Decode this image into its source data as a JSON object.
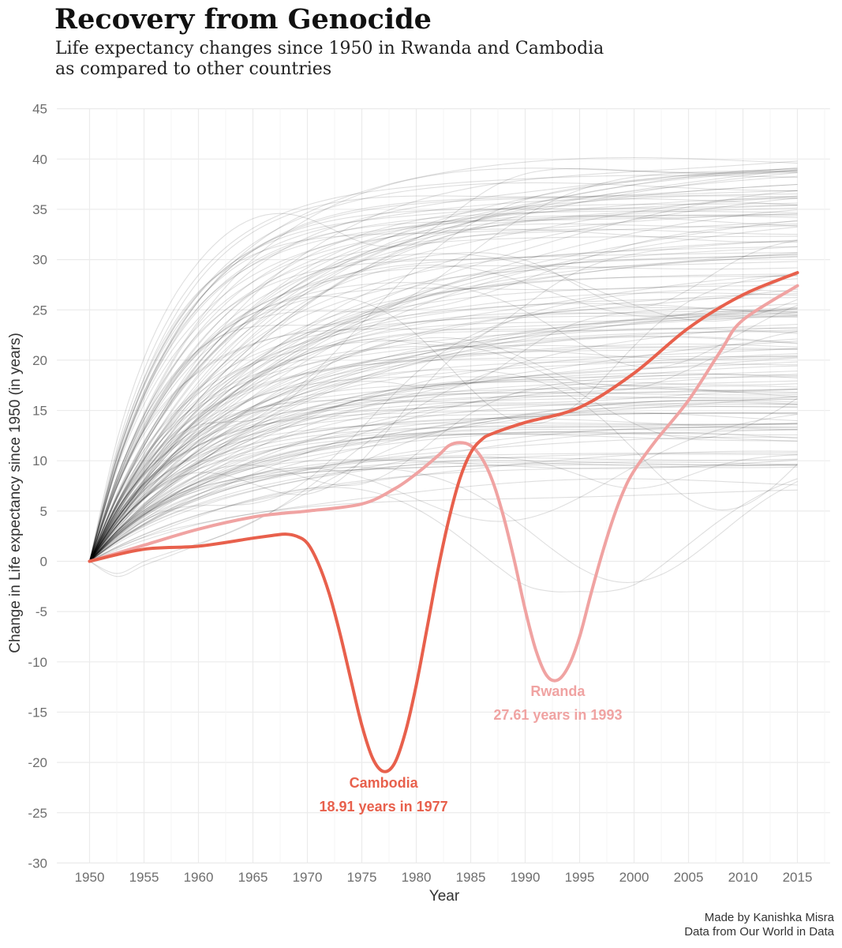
{
  "header": {
    "title": "Recovery from Genocide",
    "subtitle_line1": "Life expectancy changes since 1950 in Rwanda and Cambodia",
    "subtitle_line2": "as compared to other countries"
  },
  "caption": {
    "line1": "Made by Kanishka Misra",
    "line2": "Data from Our World in Data"
  },
  "chart_data": {
    "type": "line",
    "xlabel": "Year",
    "ylabel": "Change in Life expectancy since 1950 (in years)",
    "xlim": [
      1947,
      2018
    ],
    "ylim": [
      -30,
      45
    ],
    "x_ticks": [
      1950,
      1955,
      1960,
      1965,
      1970,
      1975,
      1980,
      1985,
      1990,
      1995,
      2000,
      2005,
      2010,
      2015
    ],
    "y_ticks": [
      45,
      40,
      35,
      30,
      25,
      20,
      15,
      10,
      5,
      0,
      -5,
      -10,
      -15,
      -20,
      -25,
      -30
    ],
    "grid": true,
    "background_series_color": "#000000",
    "highlighted_series": [
      {
        "name": "Cambodia",
        "color": "#e8604c",
        "annotation_line1": "Cambodia",
        "annotation_line2": "18.91 years in 1977",
        "annotation_at": [
          1977,
          -22.5
        ],
        "x": [
          1950,
          1955,
          1960,
          1965,
          1967,
          1968,
          1969,
          1970,
          1971,
          1972,
          1973,
          1974,
          1975,
          1976,
          1977,
          1978,
          1979,
          1980,
          1981,
          1982,
          1983,
          1984,
          1985,
          1986,
          1987,
          1990,
          1995,
          2000,
          2005,
          2010,
          2015
        ],
        "y": [
          0,
          1.2,
          1.5,
          2.3,
          2.6,
          2.7,
          2.5,
          1.8,
          -0.2,
          -3.2,
          -7.2,
          -11.8,
          -16.3,
          -19.6,
          -20.9,
          -20.1,
          -17.0,
          -12.3,
          -6.6,
          -0.8,
          4.2,
          8.2,
          10.8,
          12.1,
          12.7,
          13.8,
          15.3,
          18.7,
          23.2,
          26.5,
          28.7
        ]
      },
      {
        "name": "Rwanda",
        "color": "#f0a3a2",
        "annotation_line1": "Rwanda",
        "annotation_line2": "27.61 years in 1993",
        "annotation_at": [
          1993,
          -13.4
        ],
        "x": [
          1950,
          1955,
          1960,
          1965,
          1968,
          1970,
          1975,
          1978,
          1980,
          1982,
          1983,
          1984,
          1985,
          1986,
          1987,
          1988,
          1989,
          1990,
          1991,
          1992,
          1993,
          1994,
          1995,
          1996,
          1997,
          1998,
          1999,
          2000,
          2002,
          2005,
          2008,
          2010,
          2015
        ],
        "y": [
          0,
          1.6,
          3.2,
          4.4,
          4.8,
          5.0,
          5.7,
          7.2,
          8.7,
          10.5,
          11.5,
          11.8,
          11.5,
          10.3,
          8.0,
          4.5,
          0.1,
          -4.8,
          -8.9,
          -11.4,
          -11.8,
          -10.4,
          -7.5,
          -3.4,
          0.5,
          4.0,
          6.9,
          9.0,
          12.0,
          16.0,
          21.0,
          24.0,
          27.4
        ]
      }
    ]
  }
}
